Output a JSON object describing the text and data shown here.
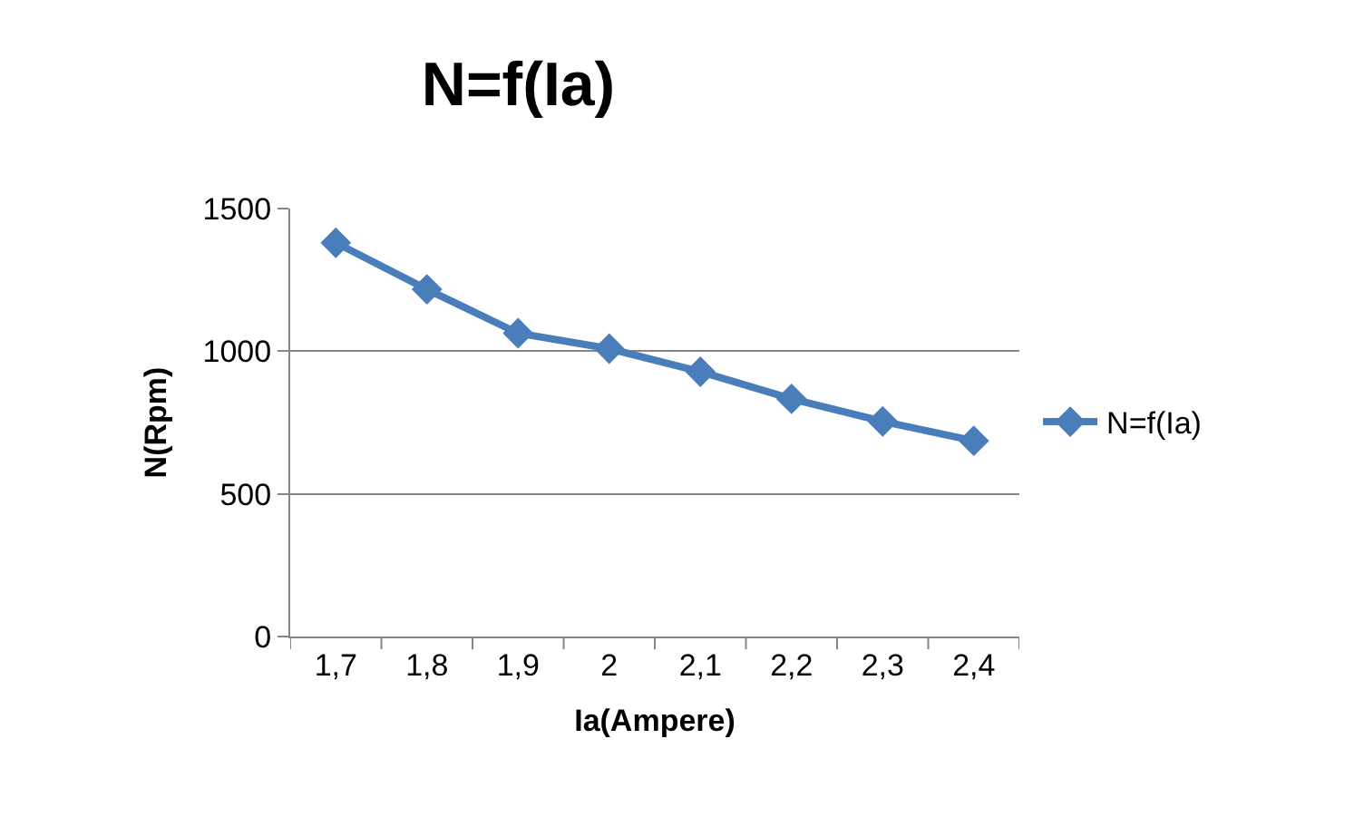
{
  "chart_data": {
    "type": "line",
    "title": "N=f(Ia)",
    "xlabel": "Ia(Ampere)",
    "ylabel": "N(Rpm)",
    "categories": [
      "1,7",
      "1,8",
      "1,9",
      "2",
      "2,1",
      "2,2",
      "2,3",
      "2,4"
    ],
    "series": [
      {
        "name": "N=f(Ia)",
        "color": "#4a7ebb",
        "values": [
          1380,
          1217,
          1063,
          1009,
          928,
          833,
          754,
          686
        ]
      }
    ],
    "ylim": [
      0,
      1500
    ],
    "yticks": [
      0,
      500,
      1000,
      1500
    ],
    "grid": "y",
    "legend": "right",
    "marker": "diamond",
    "line_style": "solid"
  }
}
